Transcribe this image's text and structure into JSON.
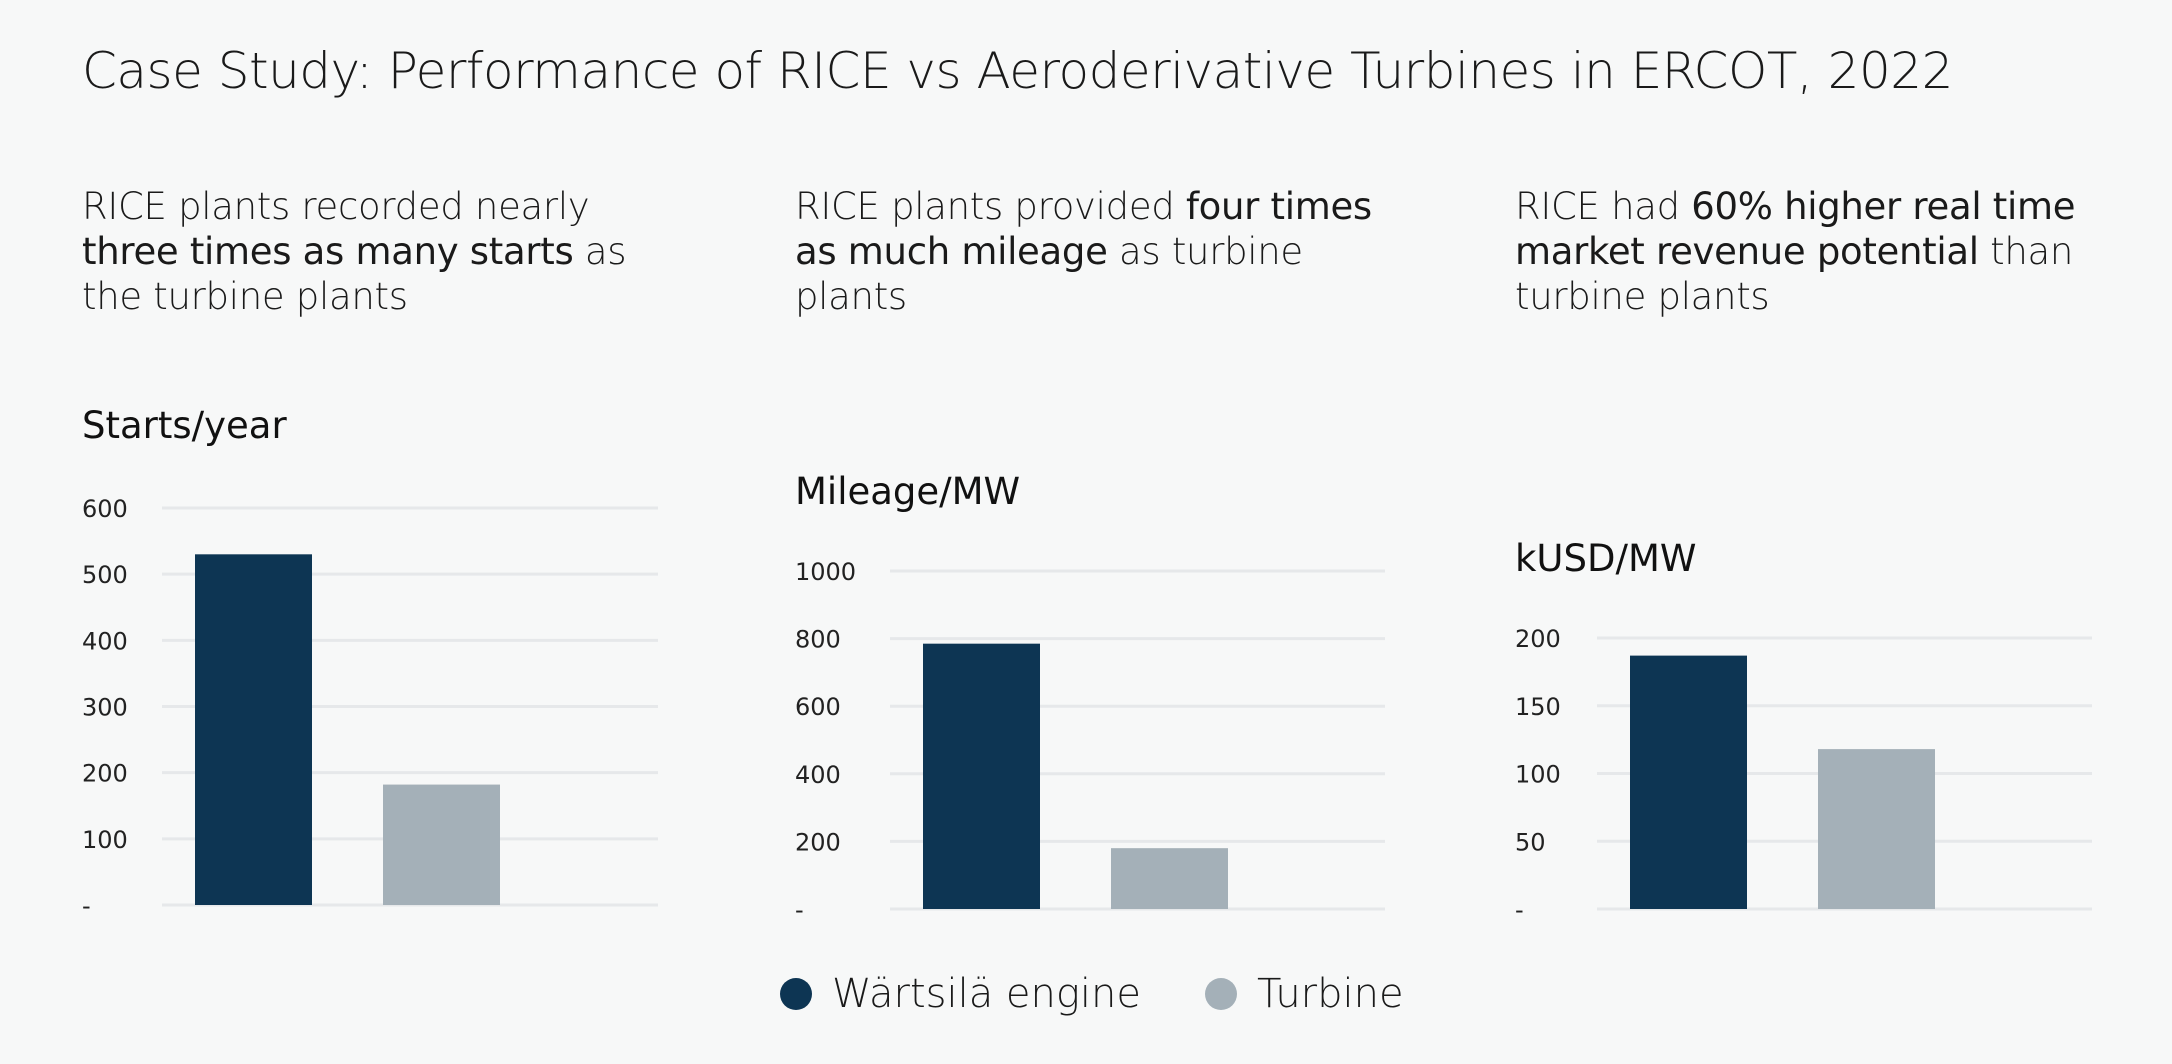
{
  "title": "Case Study: Performance of RICE vs Aeroderivative Turbines in ERCOT, 2022",
  "panels": [
    {
      "subtitle_parts": [
        {
          "text": "RICE plants recorded nearly ",
          "bold": false
        },
        {
          "text": "three times as many starts",
          "bold": true
        },
        {
          "text": " as the turbine plants",
          "bold": false
        }
      ],
      "unit_label": "Starts/year"
    },
    {
      "subtitle_parts": [
        {
          "text": "RICE plants provided ",
          "bold": false
        },
        {
          "text": "four times as much mileage",
          "bold": true
        },
        {
          "text": " as turbine plants",
          "bold": false
        }
      ],
      "unit_label": "Mileage/MW"
    },
    {
      "subtitle_parts": [
        {
          "text": "RICE had ",
          "bold": false
        },
        {
          "text": "60% higher real time market revenue potential",
          "bold": true
        },
        {
          "text": " than turbine plants",
          "bold": false
        }
      ],
      "unit_label": "kUSD/MW"
    }
  ],
  "legend": [
    {
      "label": "Wärtsilä engine",
      "color": "#0d3553"
    },
    {
      "label": "Turbine",
      "color": "#a4b0b8"
    }
  ],
  "chart_data": [
    {
      "type": "bar",
      "categories": [
        "Wärtsilä engine",
        "Turbine"
      ],
      "values": [
        530,
        182
      ],
      "ylabel": "Starts/year",
      "ylim": [
        0,
        600
      ],
      "yticks": [
        0,
        100,
        200,
        300,
        400,
        500,
        600
      ],
      "ytick_labels": [
        "-",
        "100",
        "200",
        "300",
        "400",
        "500",
        "600"
      ],
      "colors": [
        "#0d3553",
        "#a4b0b8"
      ],
      "grid": true
    },
    {
      "type": "bar",
      "categories": [
        "Wärtsilä engine",
        "Turbine"
      ],
      "values": [
        785,
        180
      ],
      "ylabel": "Mileage/MW",
      "ylim": [
        0,
        1000
      ],
      "yticks": [
        0,
        200,
        400,
        600,
        800,
        1000
      ],
      "ytick_labels": [
        "-",
        "200",
        "400",
        "600",
        "800",
        "1000"
      ],
      "colors": [
        "#0d3553",
        "#a4b0b8"
      ],
      "grid": true
    },
    {
      "type": "bar",
      "categories": [
        "Wärtsilä engine",
        "Turbine"
      ],
      "values": [
        187,
        118
      ],
      "ylabel": "kUSD/MW",
      "ylim": [
        0,
        200
      ],
      "yticks": [
        0,
        50,
        100,
        150,
        200
      ],
      "ytick_labels": [
        "-",
        "50",
        "100",
        "150",
        "200"
      ],
      "colors": [
        "#0d3553",
        "#a4b0b8"
      ],
      "grid": true
    }
  ]
}
